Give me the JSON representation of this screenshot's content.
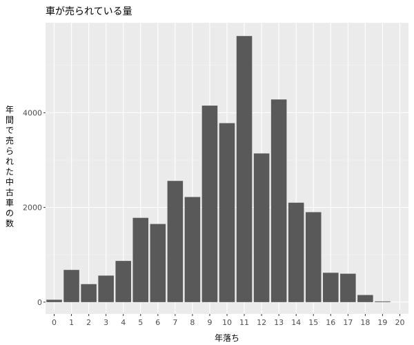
{
  "chart_data": {
    "type": "bar",
    "title": "車が売られている量",
    "xlabel": "年落ち",
    "ylabel": "年間で売られた中古車の数",
    "categories": [
      "0",
      "1",
      "2",
      "3",
      "4",
      "5",
      "6",
      "7",
      "8",
      "9",
      "10",
      "11",
      "12",
      "13",
      "14",
      "15",
      "16",
      "17",
      "18",
      "19",
      "20"
    ],
    "values": [
      50,
      680,
      380,
      560,
      870,
      1780,
      1650,
      2560,
      2220,
      4150,
      3780,
      5620,
      3140,
      4280,
      2100,
      1900,
      620,
      600,
      150,
      15,
      0
    ],
    "yticks": [
      0,
      2000,
      4000
    ],
    "ylim": [
      -250,
      5900
    ],
    "grid": true,
    "legend": "none",
    "colors": {
      "bar": "#595959",
      "panel": "#ebebeb",
      "grid_major": "#ffffff",
      "grid_minor": "#f5f5f5"
    }
  }
}
